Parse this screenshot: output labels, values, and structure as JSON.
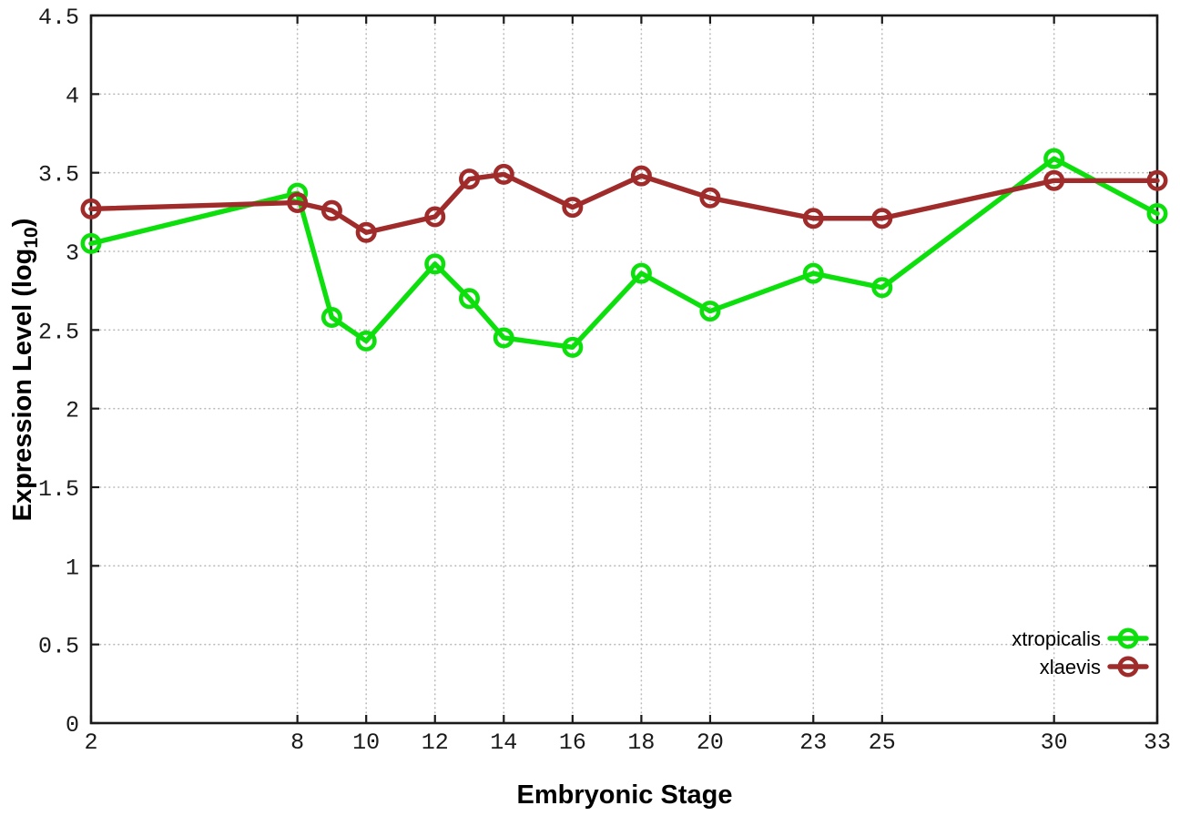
{
  "chart_data": {
    "type": "line",
    "title": "",
    "xlabel": "Embryonic Stage",
    "ylabel": "Expression Level (log10)",
    "ylabel_parts": {
      "main": "Expression Level (log",
      "sub": "10",
      "end": ")"
    },
    "xlim": [
      2,
      33
    ],
    "ylim": [
      0,
      4.5
    ],
    "x_ticks": [
      2,
      8,
      10,
      12,
      14,
      16,
      18,
      20,
      23,
      25,
      30,
      33
    ],
    "x_tick_labels": [
      "2",
      "8",
      "10",
      "12",
      "14",
      "16",
      "18",
      "20",
      "23",
      "25",
      "30",
      "33"
    ],
    "y_ticks": [
      0,
      0.5,
      1,
      1.5,
      2,
      2.5,
      3,
      3.5,
      4,
      4.5
    ],
    "y_tick_labels": [
      "0",
      "0.5",
      "1",
      "1.5",
      "2",
      "2.5",
      "3",
      "3.5",
      "4",
      "4.5"
    ],
    "grid": true,
    "legend_position": "inside-bottom-right",
    "x": [
      2,
      8,
      9,
      10,
      12,
      13,
      14,
      16,
      18,
      20,
      23,
      25,
      30,
      33
    ],
    "series": [
      {
        "name": "xtropicalis",
        "color": "#0ddf0d",
        "marker": "open-circle",
        "values": [
          3.05,
          3.37,
          2.58,
          2.43,
          2.92,
          2.7,
          2.45,
          2.39,
          2.86,
          2.62,
          2.86,
          2.77,
          3.59,
          3.24
        ]
      },
      {
        "name": "xlaevis",
        "color": "#a02b2b",
        "marker": "open-circle",
        "values": [
          3.27,
          3.31,
          3.26,
          3.12,
          3.22,
          3.46,
          3.49,
          3.28,
          3.48,
          3.34,
          3.21,
          3.21,
          3.45,
          3.45
        ]
      }
    ],
    "style": {
      "border_color": "#1a1a1a",
      "grid_color": "#b8b8b8",
      "background": "#ffffff"
    }
  }
}
